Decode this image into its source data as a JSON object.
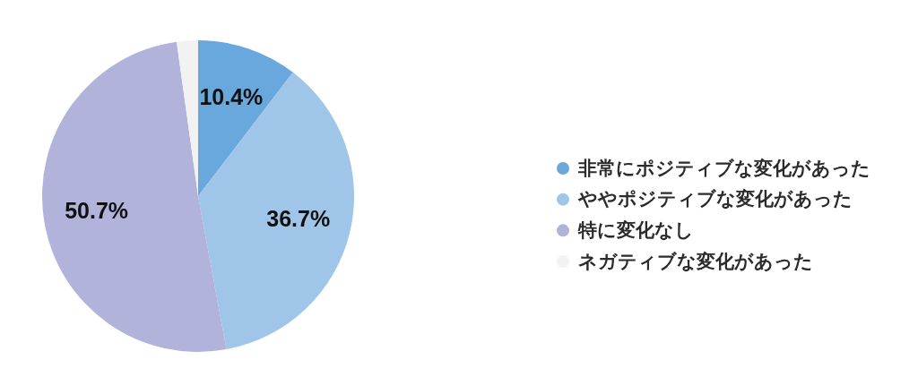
{
  "chart_data": {
    "type": "pie",
    "categories": [
      "非常にポジティブな変化があった",
      "ややポジティブな変化があった",
      "特に変化なし",
      "ネガティブな変化があった"
    ],
    "values": [
      10.4,
      36.7,
      50.7,
      2.2
    ],
    "colors": [
      "#68a8dc",
      "#9fc5e8",
      "#b1b3da",
      "#f2f2f2"
    ],
    "value_labels": [
      "10.4%",
      "36.7%",
      "50.7%",
      null
    ],
    "legend": "right"
  }
}
